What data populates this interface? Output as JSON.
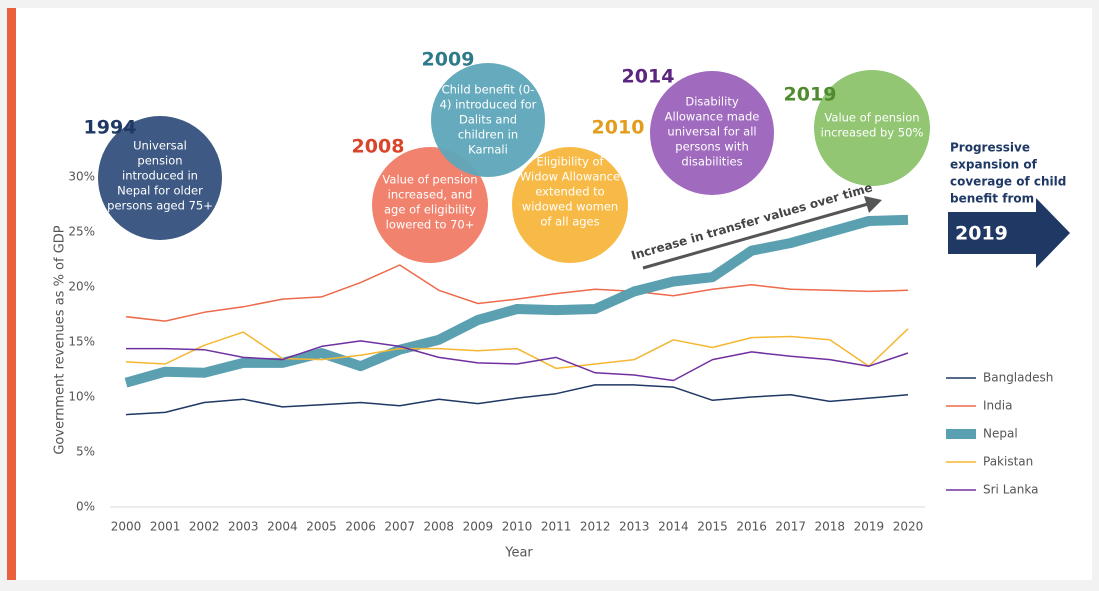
{
  "chart_data": {
    "type": "line",
    "y_axis_label": "Government revenues as % of GDP",
    "x_axis_label": "Year",
    "categories": [
      "2000",
      "2001",
      "2002",
      "2003",
      "2004",
      "2005",
      "2006",
      "2007",
      "2008",
      "2009",
      "2010",
      "2011",
      "2012",
      "2013",
      "2014",
      "2015",
      "2016",
      "2017",
      "2018",
      "2019",
      "2020"
    ],
    "series": [
      {
        "name": "Bangladesh",
        "color": "#1f3864",
        "line_width": 1.5,
        "values": [
          8.4,
          8.6,
          9.5,
          9.8,
          9.1,
          9.3,
          9.5,
          9.2,
          9.8,
          9.4,
          9.9,
          10.3,
          11.1,
          11.1,
          10.9,
          9.7,
          10.0,
          10.2,
          9.6,
          9.9,
          10.2
        ]
      },
      {
        "name": "India",
        "color": "#ed6a4a",
        "line_width": 1.5,
        "values": [
          17.3,
          16.9,
          17.7,
          18.2,
          18.9,
          19.1,
          20.4,
          22.0,
          19.7,
          18.5,
          18.9,
          19.4,
          19.8,
          19.6,
          19.2,
          19.8,
          20.2,
          19.8,
          19.7,
          19.6,
          19.7
        ]
      },
      {
        "name": "Nepal",
        "color": "#5aa0b0",
        "line_width": 10,
        "values": [
          11.3,
          12.3,
          12.2,
          13.1,
          13.1,
          14.0,
          12.8,
          14.3,
          15.2,
          17.0,
          18.0,
          17.9,
          18.0,
          19.6,
          20.5,
          20.9,
          23.3,
          24.0,
          25.0,
          26.0,
          26.1
        ]
      },
      {
        "name": "Pakistan",
        "color": "#f5b731",
        "line_width": 1.5,
        "values": [
          13.2,
          13.0,
          14.7,
          15.9,
          13.5,
          13.4,
          13.8,
          14.4,
          14.4,
          14.2,
          14.4,
          12.6,
          13.0,
          13.4,
          15.2,
          14.5,
          15.4,
          15.5,
          15.2,
          12.8,
          16.2
        ]
      },
      {
        "name": "Sri Lanka",
        "color": "#7030a0",
        "line_width": 1.5,
        "values": [
          14.4,
          14.4,
          14.3,
          13.6,
          13.4,
          14.6,
          15.1,
          14.6,
          13.6,
          13.1,
          13.0,
          13.6,
          12.2,
          12.0,
          11.5,
          13.4,
          14.1,
          13.7,
          13.4,
          12.8,
          14.0
        ]
      }
    ],
    "ylim": [
      0,
      30
    ],
    "yticks": [
      {
        "value": 0,
        "label": "0%"
      },
      {
        "value": 5,
        "label": "5%"
      },
      {
        "value": 10,
        "label": "10%"
      },
      {
        "value": 15,
        "label": "15%"
      },
      {
        "value": 20,
        "label": "20%"
      },
      {
        "value": 25,
        "label": "25%"
      },
      {
        "value": 30,
        "label": "30%"
      }
    ],
    "legend": "right",
    "annotations": [
      {
        "year": "1994",
        "year_color": "#1f3864",
        "color": "#34507c",
        "lines": [
          "Universal",
          "pension",
          "introduced in",
          "Nepal for older",
          "persons aged 75+"
        ]
      },
      {
        "year": "2008",
        "year_color": "#d9442a",
        "color": "#ef7b66",
        "lines": [
          "Value of pension",
          "increased, and",
          "age of eligibility",
          "lowered to 70+"
        ]
      },
      {
        "year": "2009",
        "year_color": "#2f7a8a",
        "color": "#5ea6b9",
        "lines": [
          "Child benefit (0-",
          "4) introduced for",
          "Dalits and",
          "children in",
          "Karnali"
        ]
      },
      {
        "year": "2010",
        "year_color": "#e39d1c",
        "color": "#f7b63c",
        "lines": [
          "Eligibility of",
          "Widow Allowance",
          "extended to",
          "widowed women",
          "of all ages"
        ]
      },
      {
        "year": "2014",
        "year_color": "#5b2580",
        "color": "#9b62ba",
        "lines": [
          "Disability",
          "Allowance made",
          "universal for all",
          "persons with",
          "disabilities"
        ]
      },
      {
        "year": "2019",
        "year_color": "#4f8a2c",
        "color": "#8cc36c",
        "lines": [
          "Value of pension",
          "increased by 50%"
        ]
      }
    ],
    "trend_arrow_label": "Increase in transfer values over time",
    "side_note": [
      "Progressive",
      "expansion of",
      "coverage of child",
      "benefit from"
    ],
    "side_note_year": "2019"
  }
}
